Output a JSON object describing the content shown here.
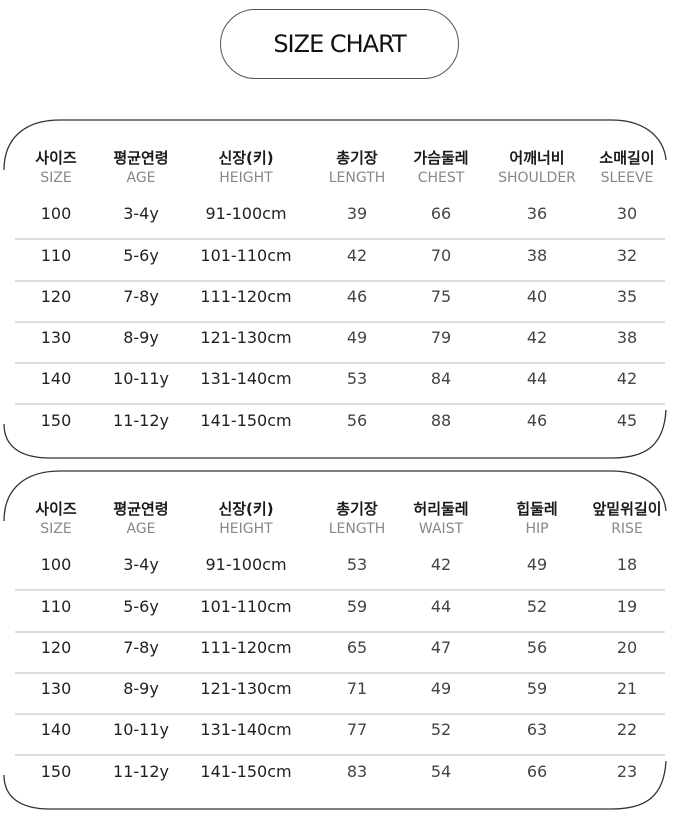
{
  "title": "SIZE CHART",
  "tables": [
    {
      "headers": [
        {
          "ko": "사이즈",
          "en": "SIZE"
        },
        {
          "ko": "평균연령",
          "en": "AGE"
        },
        {
          "ko": "신장(키)",
          "en": "HEIGHT"
        },
        {
          "ko": "총기장",
          "en": "LENGTH"
        },
        {
          "ko": "가슴둘레",
          "en": "CHEST"
        },
        {
          "ko": "어깨너비",
          "en": "SHOULDER"
        },
        {
          "ko": "소매길이",
          "en": "SLEEVE"
        }
      ],
      "rows": [
        [
          "100",
          "3-4y",
          "91-100cm",
          "39",
          "66",
          "36",
          "30"
        ],
        [
          "110",
          "5-6y",
          "101-110cm",
          "42",
          "70",
          "38",
          "32"
        ],
        [
          "120",
          "7-8y",
          "111-120cm",
          "46",
          "75",
          "40",
          "35"
        ],
        [
          "130",
          "8-9y",
          "121-130cm",
          "49",
          "79",
          "42",
          "38"
        ],
        [
          "140",
          "10-11y",
          "131-140cm",
          "53",
          "84",
          "44",
          "42"
        ],
        [
          "150",
          "11-12y",
          "141-150cm",
          "56",
          "88",
          "46",
          "45"
        ]
      ]
    },
    {
      "headers": [
        {
          "ko": "사이즈",
          "en": "SIZE"
        },
        {
          "ko": "평균연령",
          "en": "AGE"
        },
        {
          "ko": "신장(키)",
          "en": "HEIGHT"
        },
        {
          "ko": "총기장",
          "en": "LENGTH"
        },
        {
          "ko": "허리둘레",
          "en": "WAIST"
        },
        {
          "ko": "힙둘레",
          "en": "HIP"
        },
        {
          "ko": "앞밑위길이",
          "en": "RISE"
        }
      ],
      "rows": [
        [
          "100",
          "3-4y",
          "91-100cm",
          "53",
          "42",
          "49",
          "18"
        ],
        [
          "110",
          "5-6y",
          "101-110cm",
          "59",
          "44",
          "52",
          "19"
        ],
        [
          "120",
          "7-8y",
          "111-120cm",
          "65",
          "47",
          "56",
          "20"
        ],
        [
          "130",
          "8-9y",
          "121-130cm",
          "71",
          "49",
          "59",
          "21"
        ],
        [
          "140",
          "10-11y",
          "131-140cm",
          "77",
          "52",
          "63",
          "22"
        ],
        [
          "150",
          "11-12y",
          "141-150cm",
          "83",
          "54",
          "66",
          "23"
        ]
      ]
    }
  ]
}
